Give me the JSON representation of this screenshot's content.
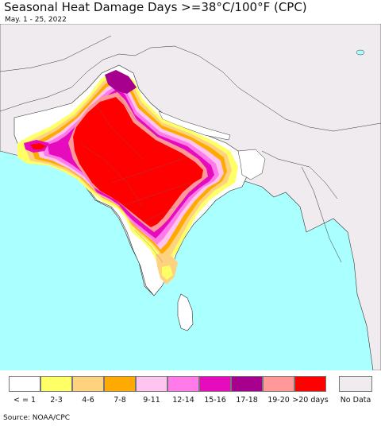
{
  "title": "Seasonal Heat Damage Days >=38°C/100°F (CPC)",
  "subtitle": "May. 1 - 25, 2022",
  "source": "Source: NOAA/CPC",
  "colors": {
    "ocean": "#aaffff",
    "no_data_land": "#efebef",
    "border": "#333333"
  },
  "legend": [
    {
      "label": "< = 1",
      "color": "#ffffff"
    },
    {
      "label": "2-3",
      "color": "#ffff66"
    },
    {
      "label": "4-6",
      "color": "#ffd27f"
    },
    {
      "label": "7-8",
      "color": "#ffaa00"
    },
    {
      "label": "9-11",
      "color": "#ffc4f0"
    },
    {
      "label": "12-14",
      "color": "#ff7bea"
    },
    {
      "label": "15-16",
      "color": "#e60bbd"
    },
    {
      "label": "17-18",
      "color": "#a7008f"
    },
    {
      "label": "19-20",
      "color": "#ff9999"
    },
    {
      "label": ">20 days",
      "color": "#ff0000"
    },
    {
      "label": "No Data",
      "color": "#efebef"
    }
  ]
}
